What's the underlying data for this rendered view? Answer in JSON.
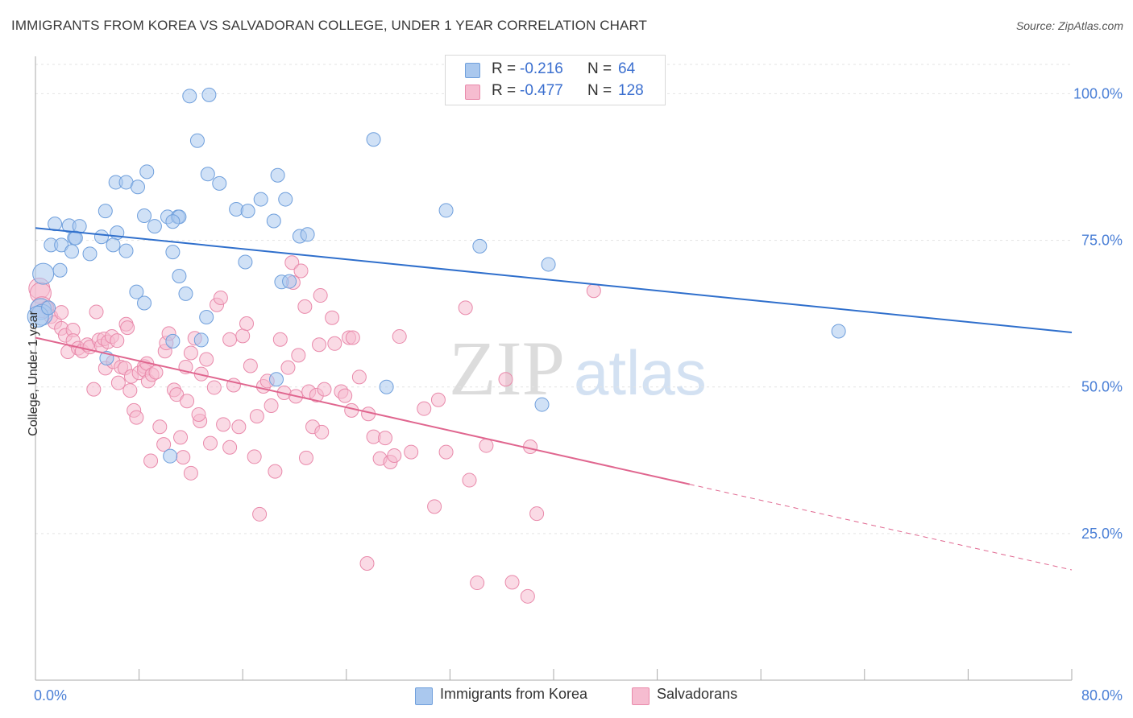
{
  "header": {
    "title": "IMMIGRANTS FROM KOREA VS SALVADORAN COLLEGE, UNDER 1 YEAR CORRELATION CHART",
    "source": "Source: ZipAtlas.com"
  },
  "watermark": {
    "part1": "ZIP",
    "part2": "atlas"
  },
  "legend_top": {
    "rows": [
      {
        "r_label": "R =",
        "r_value": "-0.216",
        "n_label": "N =",
        "n_value": "64"
      },
      {
        "r_label": "R =",
        "r_value": "-0.477",
        "n_label": "N = ",
        "n_value": "128"
      }
    ]
  },
  "legend_bottom": {
    "items": [
      {
        "label": "Immigrants from Korea"
      },
      {
        "label": "Salvadorans"
      }
    ]
  },
  "colors": {
    "blue_fill": "#aac8ee",
    "blue_stroke": "#6f9fdc",
    "blue_line": "#2f6fcc",
    "pink_fill": "#f6bcd0",
    "pink_stroke": "#e98aab",
    "pink_line": "#e0668f",
    "grid": "#e3e3e3",
    "tick_text": "#4a7fd6"
  },
  "chart_data": {
    "type": "scatter",
    "title": "IMMIGRANTS FROM KOREA VS SALVADORAN COLLEGE, UNDER 1 YEAR CORRELATION CHART",
    "xlabel": "",
    "ylabel": "College, Under 1 year",
    "xlim": [
      0,
      80
    ],
    "ylim": [
      0,
      105
    ],
    "x_tick_labels": [
      "0.0%",
      "80.0%"
    ],
    "y_ticks": [
      25,
      50,
      75,
      100
    ],
    "y_tick_labels": [
      "25.0%",
      "50.0%",
      "75.0%",
      "100.0%"
    ],
    "grid": true,
    "legend_position": "top-center",
    "series": [
      {
        "name": "Immigrants from Korea",
        "color": "#aac8ee",
        "r": -0.216,
        "n": 64,
        "trend": {
          "x": [
            0,
            80
          ],
          "y": [
            77.1,
            59.3
          ],
          "dashed_from": null
        },
        "points": [
          [
            11.9,
            99.6
          ],
          [
            13.4,
            99.8
          ],
          [
            12.5,
            92.0
          ],
          [
            26.1,
            92.2
          ],
          [
            8.6,
            86.7
          ],
          [
            13.3,
            86.3
          ],
          [
            18.7,
            86.1
          ],
          [
            6.2,
            84.9
          ],
          [
            7.0,
            84.9
          ],
          [
            14.2,
            84.7
          ],
          [
            7.9,
            84.1
          ],
          [
            17.4,
            82.0
          ],
          [
            19.3,
            82.0
          ],
          [
            5.4,
            80.0
          ],
          [
            15.5,
            80.3
          ],
          [
            16.4,
            80.0
          ],
          [
            8.4,
            79.2
          ],
          [
            10.2,
            79.0
          ],
          [
            11.0,
            79.0
          ],
          [
            11.1,
            79.0
          ],
          [
            1.5,
            77.8
          ],
          [
            2.6,
            77.5
          ],
          [
            3.4,
            77.4
          ],
          [
            9.2,
            77.4
          ],
          [
            10.6,
            78.2
          ],
          [
            18.4,
            78.3
          ],
          [
            31.7,
            80.1
          ],
          [
            1.2,
            74.2
          ],
          [
            2.0,
            74.2
          ],
          [
            3.0,
            75.4
          ],
          [
            3.1,
            75.4
          ],
          [
            5.1,
            75.6
          ],
          [
            6.3,
            76.3
          ],
          [
            20.4,
            75.7
          ],
          [
            21.0,
            76.0
          ],
          [
            2.8,
            73.1
          ],
          [
            4.2,
            72.7
          ],
          [
            6.0,
            74.2
          ],
          [
            7.0,
            73.2
          ],
          [
            10.6,
            73.0
          ],
          [
            16.2,
            71.3
          ],
          [
            34.3,
            74.0
          ],
          [
            39.6,
            70.9
          ],
          [
            0.6,
            69.3
          ],
          [
            1.9,
            69.9
          ],
          [
            11.1,
            68.9
          ],
          [
            19.0,
            67.9
          ],
          [
            19.6,
            68.0
          ],
          [
            7.8,
            66.2
          ],
          [
            11.6,
            65.9
          ],
          [
            8.4,
            64.3
          ],
          [
            0.4,
            63.3
          ],
          [
            0.5,
            62.3
          ],
          [
            13.2,
            61.9
          ],
          [
            12.8,
            58.0
          ],
          [
            62.0,
            59.5
          ],
          [
            10.6,
            57.8
          ],
          [
            0.2,
            62.0
          ],
          [
            5.5,
            54.9
          ],
          [
            18.6,
            51.3
          ],
          [
            27.1,
            50.0
          ],
          [
            39.1,
            47.0
          ],
          [
            10.4,
            38.2
          ],
          [
            1.0,
            63.5
          ]
        ]
      },
      {
        "name": "Salvadorans",
        "color": "#f6bcd0",
        "r": -0.477,
        "n": 128,
        "trend": {
          "x": [
            0,
            80
          ],
          "y": [
            58.4,
            18.8
          ],
          "dashed_from": 50.5
        },
        "points": [
          [
            0.3,
            66.8
          ],
          [
            0.4,
            66.0
          ],
          [
            0.5,
            63.6
          ],
          [
            0.9,
            63.5
          ],
          [
            1.2,
            62.0
          ],
          [
            1.5,
            61.0
          ],
          [
            2.0,
            62.7
          ],
          [
            2.0,
            60.0
          ],
          [
            2.3,
            58.8
          ],
          [
            2.5,
            56.0
          ],
          [
            2.9,
            59.7
          ],
          [
            2.9,
            57.9
          ],
          [
            3.3,
            56.6
          ],
          [
            3.6,
            56.1
          ],
          [
            4.0,
            57.2
          ],
          [
            4.2,
            56.8
          ],
          [
            4.5,
            49.6
          ],
          [
            4.7,
            62.8
          ],
          [
            4.9,
            58.0
          ],
          [
            5.1,
            57.0
          ],
          [
            5.3,
            58.2
          ],
          [
            5.6,
            57.7
          ],
          [
            5.4,
            53.2
          ],
          [
            5.9,
            58.6
          ],
          [
            6.0,
            54.3
          ],
          [
            6.3,
            57.9
          ],
          [
            6.4,
            50.7
          ],
          [
            6.6,
            53.4
          ],
          [
            6.9,
            53.2
          ],
          [
            7.0,
            60.7
          ],
          [
            7.1,
            60.1
          ],
          [
            7.3,
            49.4
          ],
          [
            7.4,
            51.8
          ],
          [
            7.6,
            46.0
          ],
          [
            7.8,
            44.8
          ],
          [
            8.0,
            52.4
          ],
          [
            8.4,
            53.5
          ],
          [
            8.4,
            52.9
          ],
          [
            8.6,
            54.0
          ],
          [
            8.7,
            51.0
          ],
          [
            8.9,
            37.4
          ],
          [
            9.0,
            52.1
          ],
          [
            9.3,
            52.5
          ],
          [
            9.6,
            43.2
          ],
          [
            9.9,
            40.2
          ],
          [
            10.0,
            56.1
          ],
          [
            10.1,
            57.5
          ],
          [
            10.3,
            59.1
          ],
          [
            10.7,
            49.5
          ],
          [
            10.9,
            48.7
          ],
          [
            11.2,
            41.4
          ],
          [
            11.4,
            38.0
          ],
          [
            11.7,
            47.6
          ],
          [
            11.6,
            53.4
          ],
          [
            12.0,
            35.3
          ],
          [
            12.0,
            55.8
          ],
          [
            12.3,
            58.3
          ],
          [
            12.7,
            44.2
          ],
          [
            12.6,
            45.3
          ],
          [
            12.8,
            52.2
          ],
          [
            13.2,
            54.7
          ],
          [
            13.5,
            40.4
          ],
          [
            13.8,
            49.9
          ],
          [
            14.0,
            64.0
          ],
          [
            14.3,
            65.2
          ],
          [
            14.5,
            43.6
          ],
          [
            15.0,
            58.1
          ],
          [
            15.0,
            39.7
          ],
          [
            15.3,
            50.3
          ],
          [
            15.7,
            43.2
          ],
          [
            16.0,
            58.7
          ],
          [
            16.3,
            60.8
          ],
          [
            16.6,
            53.6
          ],
          [
            16.9,
            38.1
          ],
          [
            17.1,
            45.0
          ],
          [
            17.3,
            28.3
          ],
          [
            17.6,
            50.1
          ],
          [
            17.9,
            51.0
          ],
          [
            18.2,
            46.8
          ],
          [
            18.5,
            35.6
          ],
          [
            18.9,
            58.1
          ],
          [
            19.2,
            49.0
          ],
          [
            19.5,
            53.3
          ],
          [
            19.8,
            71.2
          ],
          [
            19.9,
            67.8
          ],
          [
            20.1,
            48.4
          ],
          [
            20.3,
            55.4
          ],
          [
            20.5,
            69.8
          ],
          [
            20.8,
            63.7
          ],
          [
            20.9,
            37.9
          ],
          [
            21.1,
            49.2
          ],
          [
            21.4,
            43.2
          ],
          [
            21.7,
            48.6
          ],
          [
            21.9,
            57.2
          ],
          [
            22.0,
            65.6
          ],
          [
            22.1,
            42.3
          ],
          [
            22.3,
            49.6
          ],
          [
            22.9,
            61.8
          ],
          [
            23.1,
            57.4
          ],
          [
            23.6,
            49.2
          ],
          [
            23.9,
            48.5
          ],
          [
            24.2,
            58.4
          ],
          [
            24.4,
            46.0
          ],
          [
            24.5,
            58.4
          ],
          [
            25.0,
            51.7
          ],
          [
            25.7,
            45.4
          ],
          [
            26.1,
            41.5
          ],
          [
            26.6,
            37.8
          ],
          [
            27.0,
            41.3
          ],
          [
            27.4,
            37.2
          ],
          [
            27.7,
            38.3
          ],
          [
            28.1,
            58.6
          ],
          [
            29.0,
            38.9
          ],
          [
            30.0,
            46.3
          ],
          [
            30.8,
            29.6
          ],
          [
            31.1,
            47.8
          ],
          [
            31.7,
            38.9
          ],
          [
            33.2,
            63.5
          ],
          [
            33.5,
            34.1
          ],
          [
            34.8,
            40.0
          ],
          [
            36.3,
            51.3
          ],
          [
            36.8,
            16.7
          ],
          [
            38.0,
            14.3
          ],
          [
            38.7,
            28.4
          ],
          [
            43.1,
            66.4
          ],
          [
            25.6,
            19.9
          ],
          [
            34.1,
            16.6
          ],
          [
            38.2,
            39.8
          ]
        ]
      }
    ]
  }
}
